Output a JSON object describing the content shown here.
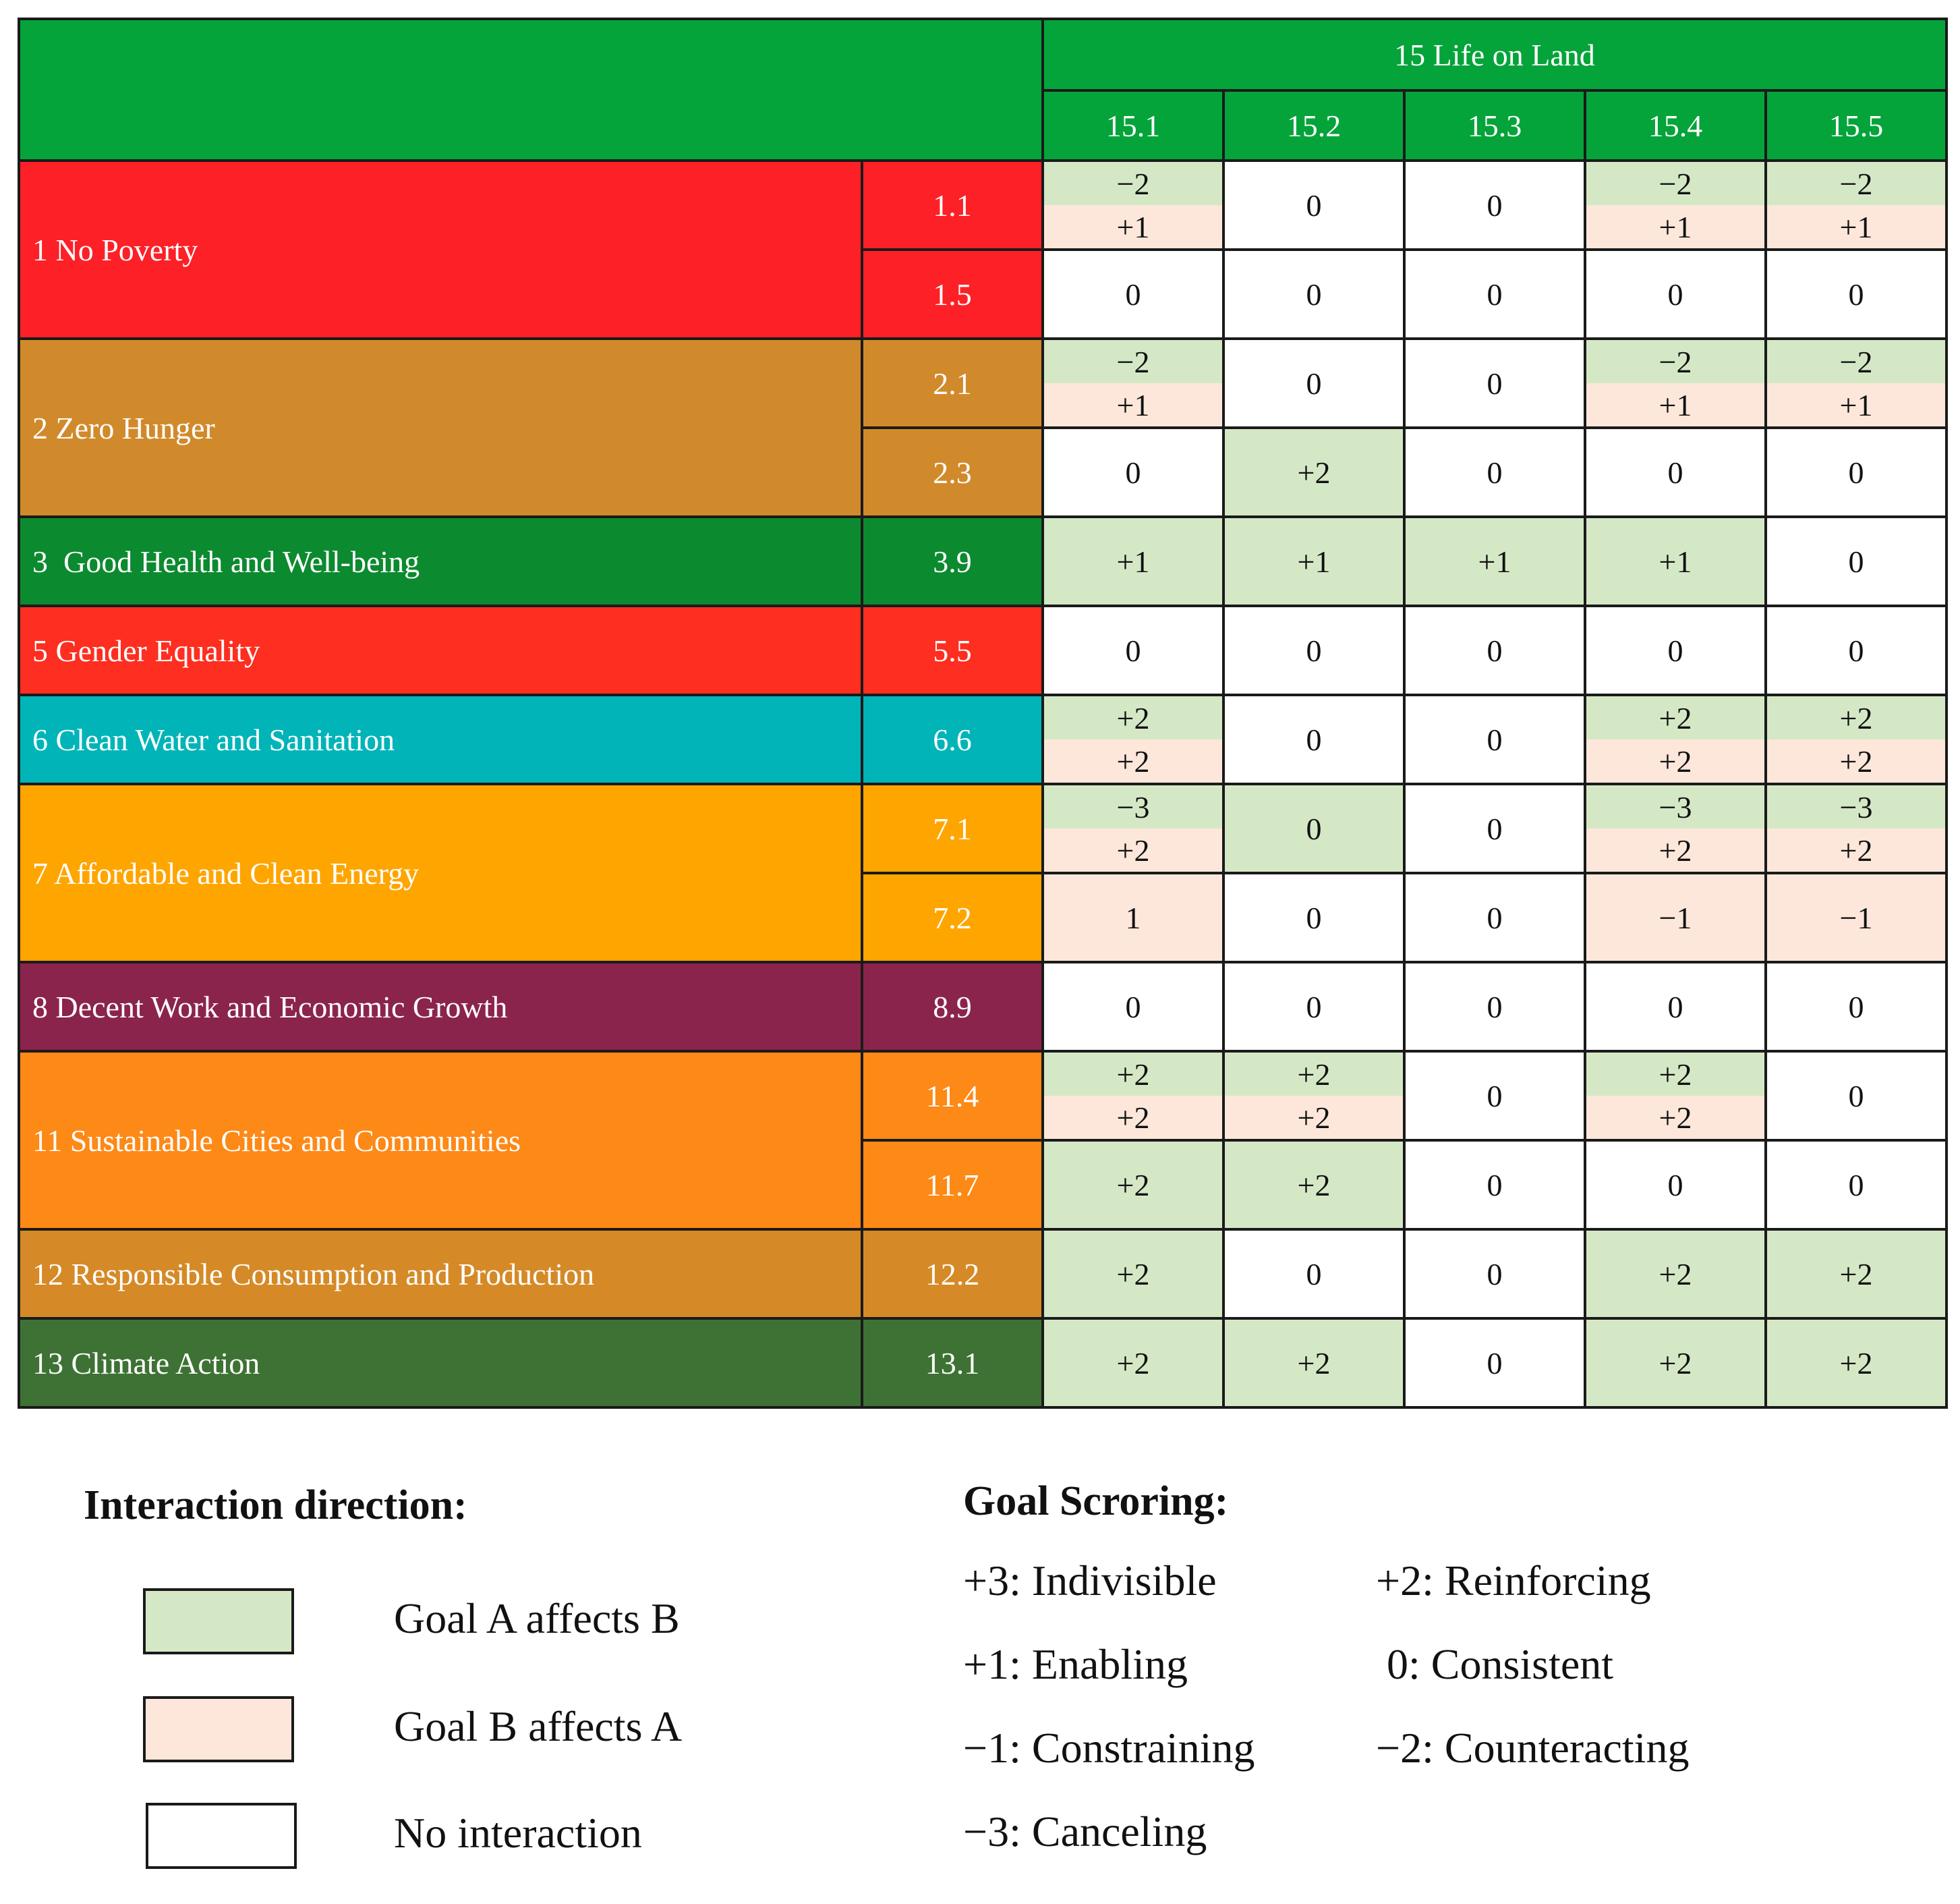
{
  "colors": {
    "header": "#04a43a",
    "a_affects_b": "#d5e8c6",
    "b_affects_a": "#fce7da",
    "none": "#ffffff"
  },
  "header": {
    "goal": "15 Life on Land",
    "columns": [
      "15.1",
      "15.2",
      "15.3",
      "15.4",
      "15.5"
    ]
  },
  "goals": [
    {
      "name": "1 No Poverty",
      "color": "#fe2027",
      "text": "#ffffff",
      "targets": [
        {
          "label": "1.1",
          "cells": [
            {
              "a": "−2",
              "b": "+1"
            },
            {
              "v": "0",
              "c": "none"
            },
            {
              "v": "0",
              "c": "none"
            },
            {
              "a": "−2",
              "b": "+1"
            },
            {
              "a": "−2",
              "b": "+1"
            }
          ]
        },
        {
          "label": "1.5",
          "cells": [
            {
              "v": "0",
              "c": "none"
            },
            {
              "v": "0",
              "c": "none"
            },
            {
              "v": "0",
              "c": "none"
            },
            {
              "v": "0",
              "c": "none"
            },
            {
              "v": "0",
              "c": "none"
            }
          ]
        }
      ]
    },
    {
      "name": "2 Zero Hunger",
      "color": "#d18a2b",
      "text": "#ffffff",
      "targets": [
        {
          "label": "2.1",
          "cells": [
            {
              "a": "−2",
              "b": "+1"
            },
            {
              "v": "0",
              "c": "none"
            },
            {
              "v": "0",
              "c": "none"
            },
            {
              "a": "−2",
              "b": "+1"
            },
            {
              "a": "−2",
              "b": "+1"
            }
          ]
        },
        {
          "label": "2.3",
          "cells": [
            {
              "v": "0",
              "c": "none"
            },
            {
              "v": "+2",
              "c": "a"
            },
            {
              "v": "0",
              "c": "none"
            },
            {
              "v": "0",
              "c": "none"
            },
            {
              "v": "0",
              "c": "none"
            }
          ]
        }
      ]
    },
    {
      "name": "3  Good Health and Well-being",
      "color": "#0c8a2f",
      "text": "#ffffff",
      "targets": [
        {
          "label": "3.9",
          "cells": [
            {
              "v": "+1",
              "c": "a"
            },
            {
              "v": "+1",
              "c": "a"
            },
            {
              "v": "+1",
              "c": "a"
            },
            {
              "v": "+1",
              "c": "a"
            },
            {
              "v": "0",
              "c": "none"
            }
          ]
        }
      ]
    },
    {
      "name": "5 Gender Equality",
      "color": "#fe2e20",
      "text": "#ffffff",
      "targets": [
        {
          "label": "5.5",
          "cells": [
            {
              "v": "0",
              "c": "none"
            },
            {
              "v": "0",
              "c": "none"
            },
            {
              "v": "0",
              "c": "none"
            },
            {
              "v": "0",
              "c": "none"
            },
            {
              "v": "0",
              "c": "none"
            }
          ]
        }
      ]
    },
    {
      "name": "6 Clean Water and Sanitation",
      "color": "#00b4b8",
      "text": "#ffffff",
      "targets": [
        {
          "label": "6.6",
          "cells": [
            {
              "a": "+2",
              "b": "+2"
            },
            {
              "v": "0",
              "c": "none"
            },
            {
              "v": "0",
              "c": "none"
            },
            {
              "a": "+2",
              "b": "+2"
            },
            {
              "a": "+2",
              "b": "+2"
            }
          ]
        }
      ]
    },
    {
      "name": "7 Affordable and Clean Energy",
      "color": "#ffa500",
      "text": "#ffffff",
      "targets": [
        {
          "label": "7.1",
          "cells": [
            {
              "a": "−3",
              "b": "+2"
            },
            {
              "v": "0",
              "c": "a"
            },
            {
              "v": "0",
              "c": "none"
            },
            {
              "a": "−3",
              "b": "+2"
            },
            {
              "a": "−3",
              "b": "+2"
            }
          ]
        },
        {
          "label": "7.2",
          "cells": [
            {
              "v": "1",
              "c": "b"
            },
            {
              "v": "0",
              "c": "none"
            },
            {
              "v": "0",
              "c": "none"
            },
            {
              "v": "−1",
              "c": "b"
            },
            {
              "v": "−1",
              "c": "b"
            }
          ]
        }
      ]
    },
    {
      "name": "8 Decent Work and Economic Growth",
      "color": "#8b244c",
      "text": "#ffffff",
      "targets": [
        {
          "label": "8.9",
          "cells": [
            {
              "v": "0",
              "c": "none"
            },
            {
              "v": "0",
              "c": "none"
            },
            {
              "v": "0",
              "c": "none"
            },
            {
              "v": "0",
              "c": "none"
            },
            {
              "v": "0",
              "c": "none"
            }
          ]
        }
      ]
    },
    {
      "name": "11 Sustainable Cities and Communities",
      "color": "#fd8917",
      "text": "#ffffff",
      "targets": [
        {
          "label": "11.4",
          "cells": [
            {
              "a": "+2",
              "b": "+2"
            },
            {
              "a": "+2",
              "b": "+2"
            },
            {
              "v": "0",
              "c": "none"
            },
            {
              "a": "+2",
              "b": "+2"
            },
            {
              "v": "0",
              "c": "none"
            }
          ]
        },
        {
          "label": "11.7",
          "cells": [
            {
              "v": "+2",
              "c": "a"
            },
            {
              "v": "+2",
              "c": "a"
            },
            {
              "v": "0",
              "c": "none"
            },
            {
              "v": "0",
              "c": "none"
            },
            {
              "v": "0",
              "c": "none"
            }
          ]
        }
      ]
    },
    {
      "name": "12 Responsible Consumption and Production",
      "color": "#d58a27",
      "text": "#ffffff",
      "targets": [
        {
          "label": "12.2",
          "cells": [
            {
              "v": "+2",
              "c": "a"
            },
            {
              "v": "0",
              "c": "none"
            },
            {
              "v": "0",
              "c": "none"
            },
            {
              "v": "+2",
              "c": "a"
            },
            {
              "v": "+2",
              "c": "a"
            }
          ]
        }
      ]
    },
    {
      "name": "13 Climate Action",
      "color": "#3e7234",
      "text": "#ffffff",
      "targets": [
        {
          "label": "13.1",
          "cells": [
            {
              "v": "+2",
              "c": "a"
            },
            {
              "v": "+2",
              "c": "a"
            },
            {
              "v": "0",
              "c": "none"
            },
            {
              "v": "+2",
              "c": "a"
            },
            {
              "v": "+2",
              "c": "a"
            }
          ]
        }
      ]
    }
  ],
  "legend": {
    "direction_title": "Interaction direction:",
    "items": [
      {
        "label": "Goal A affects B",
        "color": "#d5e8c6"
      },
      {
        "label": "Goal B affects A",
        "color": "#fce7da"
      },
      {
        "label": "No interaction",
        "color": "#ffffff"
      }
    ],
    "scoring_title": "Goal Scroring:",
    "scores": [
      "+3: Indivisible",
      "+2: Reinforcing",
      "+1: Enabling",
      " 0: Consistent",
      "−1: Constraining",
      "−2: Counteracting",
      "−3: Canceling"
    ]
  }
}
